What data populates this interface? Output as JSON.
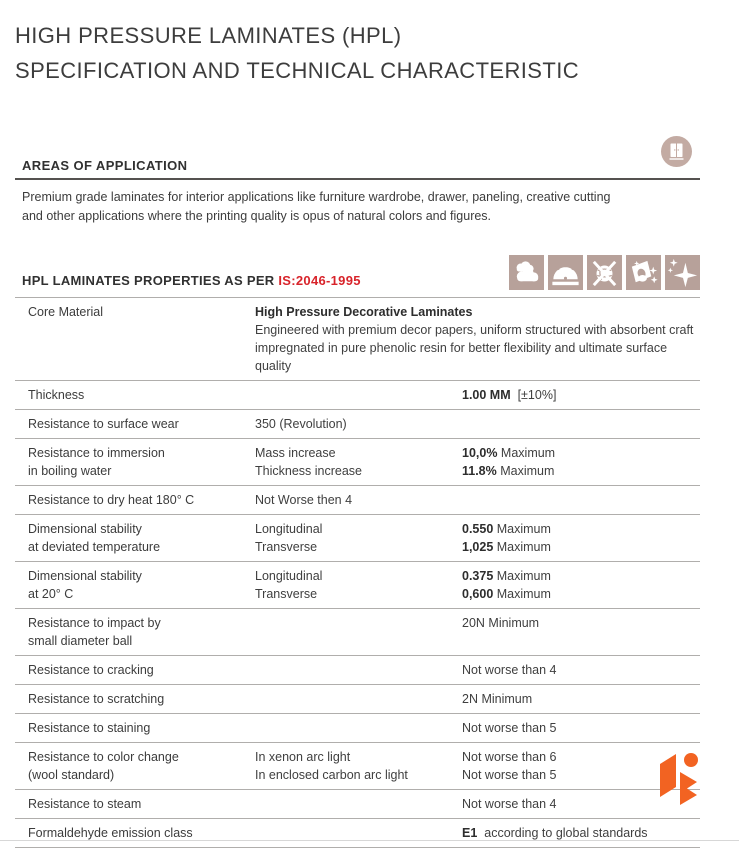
{
  "page": {
    "title_line1": "HIGH PRESSURE LAMINATES (HPL)",
    "title_line2": "SPECIFICATION AND TECHNICAL CHARACTERISTIC"
  },
  "areas": {
    "heading": "AREAS OF APPLICATION",
    "body": "Premium grade laminates for interior applications like furniture wardrobe, drawer, paneling, creative cutting and other applications where the printing quality is opus of natural colors and figures."
  },
  "properties": {
    "heading_prefix": "HPL LAMINATES PROPERTIES AS PER ",
    "heading_standard": "IS:2046-1995",
    "badge_icons": [
      "wardrobe-icon",
      "clouds-icon",
      "saw-blade-icon",
      "no-scratch-wool-icon",
      "easy-clean-icon",
      "sparkle-icon"
    ],
    "table": {
      "rows": [
        {
          "span": true,
          "label": [
            "Core Material"
          ],
          "mid": [
            {
              "t": "High Pressure Decorative Laminates",
              "b": true
            },
            {
              "t": "Engineered with premium decor papers, uniform structured with absorbent craft",
              "b": false
            },
            {
              "t": "impregnated in pure phenolic resin for better flexibility and ultimate surface quality",
              "b": false
            }
          ],
          "value": []
        },
        {
          "label": [
            "Thickness"
          ],
          "mid": [],
          "value": [
            [
              {
                "t": "1.00 MM",
                "b": true
              },
              {
                "t": "  [±10%]",
                "b": false
              }
            ]
          ]
        },
        {
          "label": [
            "Resistance to surface wear"
          ],
          "mid": [
            {
              "t": "350 (Revolution)",
              "b": false
            }
          ],
          "value": []
        },
        {
          "label": [
            "Resistance to immersion",
            "in boiling water"
          ],
          "mid": [
            {
              "t": "Mass increase",
              "b": false
            },
            {
              "t": "Thickness increase",
              "b": false
            }
          ],
          "value": [
            [
              {
                "t": "10,0%",
                "b": true
              },
              {
                "t": " Maximum",
                "b": false
              }
            ],
            [
              {
                "t": "11.8%",
                "b": true
              },
              {
                "t": " Maximum",
                "b": false
              }
            ]
          ]
        },
        {
          "label": [
            "Resistance to dry heat 180° C"
          ],
          "mid": [
            {
              "t": "Not Worse then 4",
              "b": false
            }
          ],
          "value": []
        },
        {
          "label": [
            "Dimensional stability",
            "at deviated temperature"
          ],
          "mid": [
            {
              "t": "Longitudinal",
              "b": false
            },
            {
              "t": "Transverse",
              "b": false
            }
          ],
          "value": [
            [
              {
                "t": "0.550",
                "b": true
              },
              {
                "t": " Maximum",
                "b": false
              }
            ],
            [
              {
                "t": "1,025",
                "b": true
              },
              {
                "t": " Maximum",
                "b": false
              }
            ]
          ]
        },
        {
          "label": [
            "Dimensional stability",
            "at 20° C"
          ],
          "mid": [
            {
              "t": "Longitudinal",
              "b": false
            },
            {
              "t": "Transverse",
              "b": false
            }
          ],
          "value": [
            [
              {
                "t": "0.375",
                "b": true
              },
              {
                "t": " Maximum",
                "b": false
              }
            ],
            [
              {
                "t": "0,600",
                "b": true
              },
              {
                "t": " Maximum",
                "b": false
              }
            ]
          ]
        },
        {
          "label": [
            "Resistance to impact by",
            "small diameter ball"
          ],
          "mid": [],
          "value": [
            [
              {
                "t": "20N Minimum",
                "b": false
              }
            ]
          ]
        },
        {
          "label": [
            "Resistance to cracking"
          ],
          "mid": [],
          "value": [
            [
              {
                "t": "Not worse than 4",
                "b": false
              }
            ]
          ]
        },
        {
          "label": [
            "Resistance to scratching"
          ],
          "mid": [],
          "value": [
            [
              {
                "t": "2N Minimum",
                "b": false
              }
            ]
          ]
        },
        {
          "label": [
            "Resistance to staining"
          ],
          "mid": [],
          "value": [
            [
              {
                "t": "Not worse than 5",
                "b": false
              }
            ]
          ]
        },
        {
          "label": [
            "Resistance to color change",
            "(wool standard)"
          ],
          "mid": [
            {
              "t": "In xenon arc light",
              "b": false
            },
            {
              "t": "In enclosed carbon arc light",
              "b": false
            }
          ],
          "value": [
            [
              {
                "t": "Not worse than 6",
                "b": false
              }
            ],
            [
              {
                "t": "Not worse than 5",
                "b": false
              }
            ]
          ]
        },
        {
          "label": [
            "Resistance to steam"
          ],
          "mid": [],
          "value": [
            [
              {
                "t": "Not worse than 4",
                "b": false
              }
            ]
          ]
        },
        {
          "label": [
            "Formaldehyde emission class"
          ],
          "mid": [],
          "value": [
            [
              {
                "t": "E1",
                "b": true
              },
              {
                "t": "  according to global standards",
                "b": false
              }
            ]
          ]
        }
      ]
    }
  },
  "colors": {
    "standard_red": "#d8232a",
    "icon_beige": "#b7a19a",
    "circle_beige": "#c3aba3",
    "logo_orange": "#f26322",
    "rule_gray": "#b0aeac"
  }
}
